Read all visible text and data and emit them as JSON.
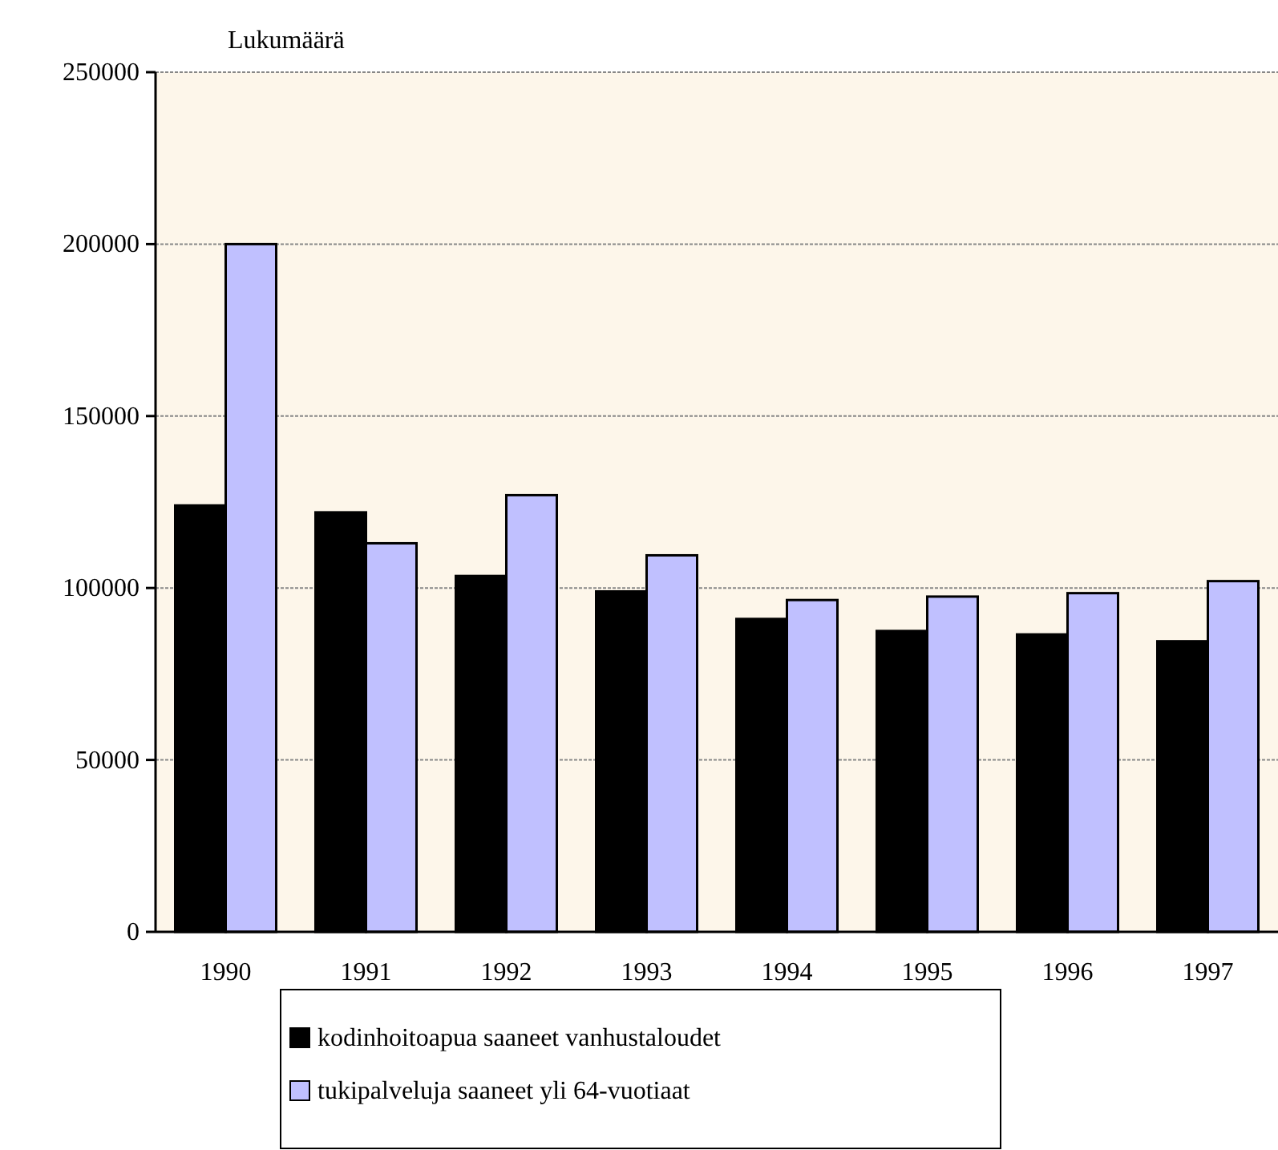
{
  "chart_data": {
    "type": "bar",
    "ylabel": "Lukumäärä",
    "categories": [
      "1990",
      "1991",
      "1992",
      "1993",
      "1994",
      "1995",
      "1996",
      "1997"
    ],
    "series": [
      {
        "name": "kodinhoitoapua saaneet vanhustaloudet",
        "color": "#000000",
        "values": [
          124000,
          122000,
          103500,
          99000,
          91000,
          87500,
          86500,
          84500
        ]
      },
      {
        "name": "tukipalveluja saaneet yli 64-vuotiaat",
        "color": "#c0c0ff",
        "values": [
          200000,
          113000,
          127000,
          109500,
          96500,
          97500,
          98500,
          102000
        ]
      }
    ],
    "ylim": [
      0,
      250000
    ],
    "yticks": [
      0,
      50000,
      100000,
      150000,
      200000,
      250000
    ],
    "grid": "y",
    "legend": "bottom"
  }
}
